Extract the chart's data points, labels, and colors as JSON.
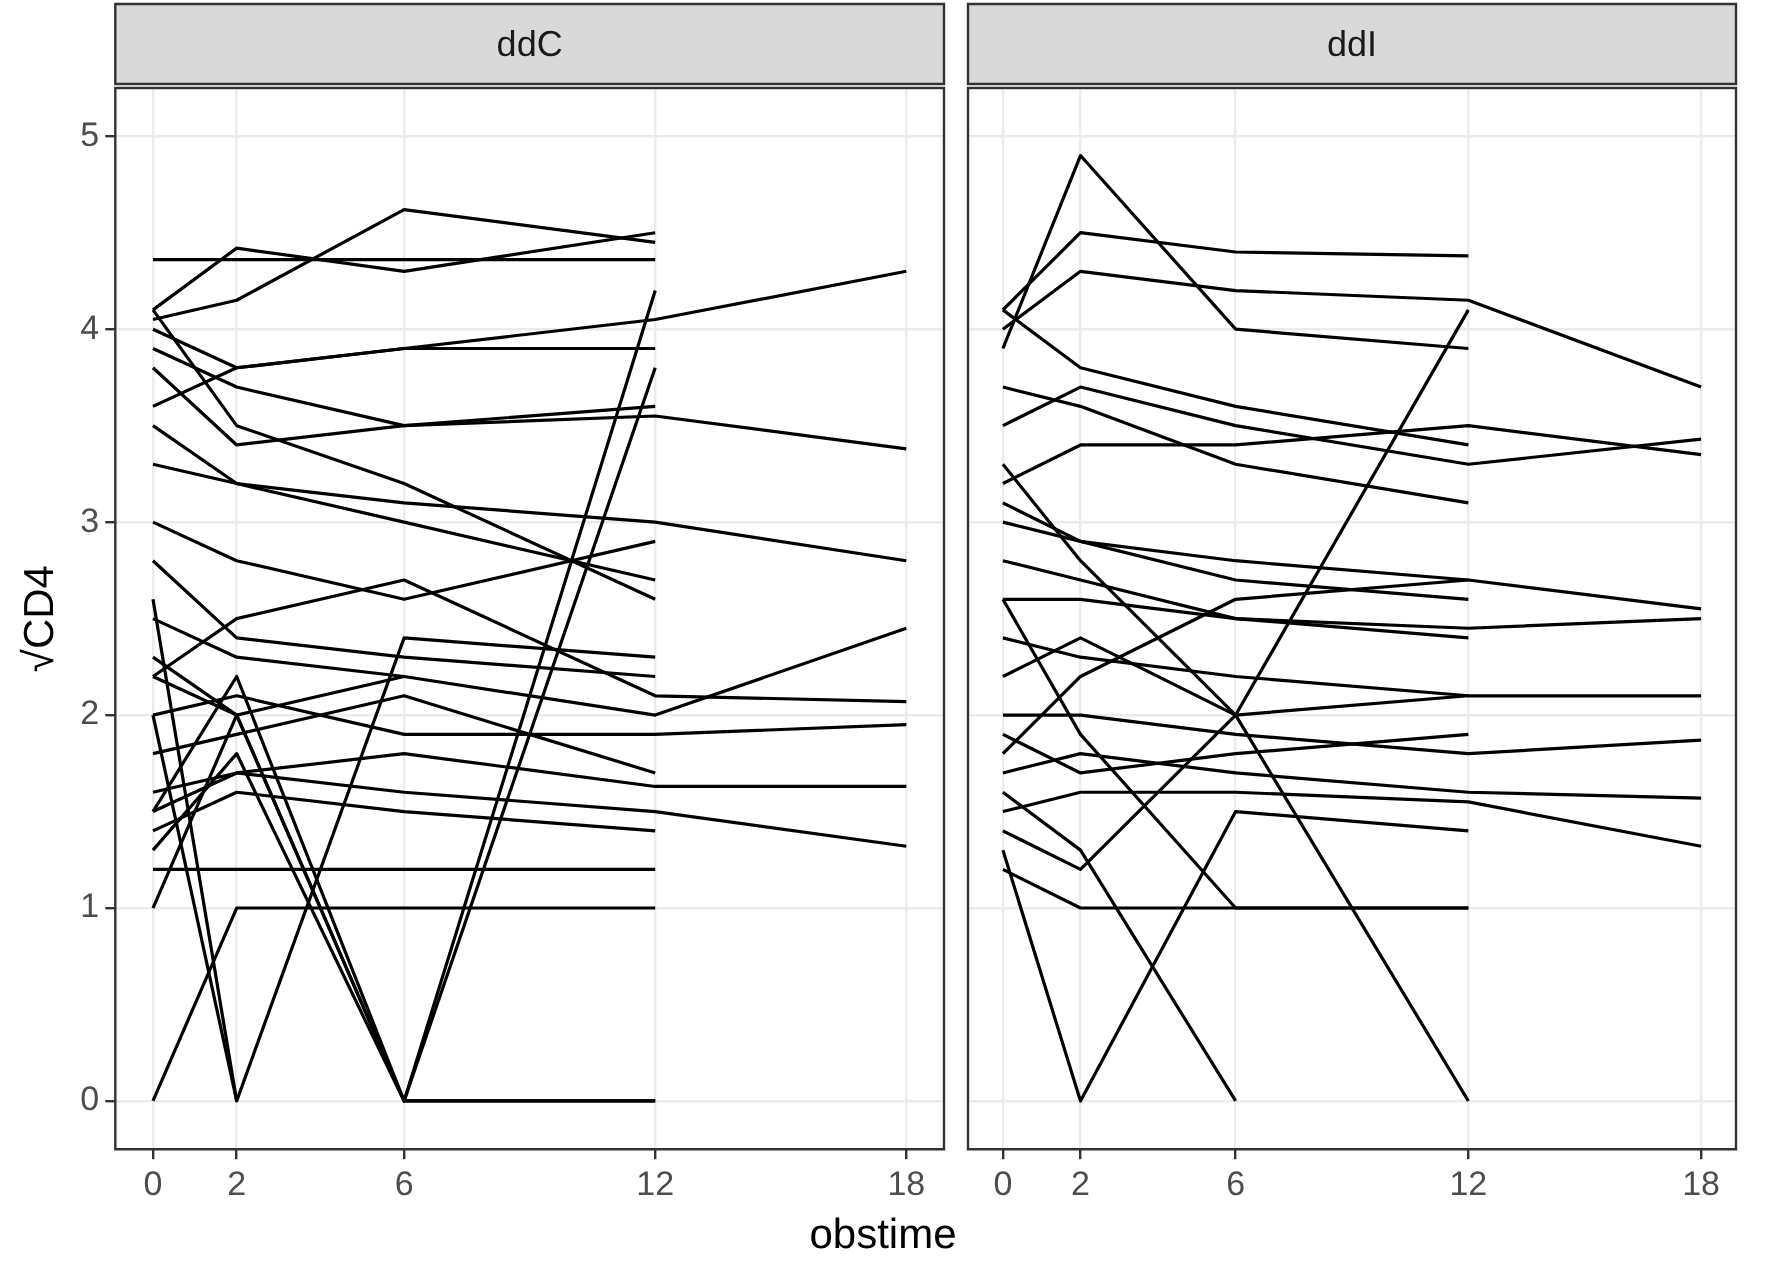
{
  "chart_data": [
    {
      "type": "line",
      "title": "ddC",
      "xlabel": "obstime",
      "ylabel": "√CD4",
      "xlim": [
        -0.9,
        18.9
      ],
      "ylim": [
        -0.25,
        5.25
      ],
      "xticks": [
        0,
        2,
        6,
        12,
        18
      ],
      "yticks": [
        0,
        1,
        2,
        3,
        4,
        5
      ],
      "grid": true,
      "legend": false,
      "series": [
        {
          "color": "#000000",
          "x": [
            0,
            2,
            6,
            12
          ],
          "values": [
            4.36,
            4.36,
            4.36,
            4.36
          ]
        },
        {
          "color": "#000000",
          "x": [
            0,
            2,
            6,
            12
          ],
          "values": [
            4.1,
            4.42,
            4.3,
            4.5
          ]
        },
        {
          "color": "#000000",
          "x": [
            0,
            2,
            6,
            12,
            18
          ],
          "values": [
            3.6,
            3.8,
            3.9,
            4.05,
            4.3
          ]
        },
        {
          "color": "#000000",
          "x": [
            0,
            2,
            6,
            12
          ],
          "values": [
            4.05,
            4.15,
            4.62,
            4.45
          ]
        },
        {
          "color": "#000000",
          "x": [
            0,
            2,
            6,
            12
          ],
          "values": [
            4.0,
            3.8,
            3.9,
            3.9
          ]
        },
        {
          "color": "#000000",
          "x": [
            0,
            2,
            6,
            12,
            18
          ],
          "values": [
            3.9,
            3.7,
            3.5,
            3.55,
            3.38
          ]
        },
        {
          "color": "#000000",
          "x": [
            0,
            2,
            6,
            12,
            18
          ],
          "values": [
            3.5,
            3.2,
            3.1,
            3.0,
            2.8
          ]
        },
        {
          "color": "#000000",
          "x": [
            0,
            2,
            6,
            12,
            18
          ],
          "values": [
            2.5,
            2.3,
            2.2,
            2.0,
            2.45
          ]
        },
        {
          "color": "#000000",
          "x": [
            0,
            2,
            6,
            12,
            18
          ],
          "values": [
            2.0,
            2.1,
            1.9,
            1.9,
            1.95
          ]
        },
        {
          "color": "#000000",
          "x": [
            0,
            2,
            6,
            12,
            18
          ],
          "values": [
            1.6,
            1.7,
            1.8,
            1.63,
            1.63
          ]
        },
        {
          "color": "#000000",
          "x": [
            0,
            2,
            6,
            12,
            18
          ],
          "values": [
            1.5,
            1.7,
            1.6,
            1.5,
            1.32
          ]
        },
        {
          "color": "#000000",
          "x": [
            0,
            2,
            6,
            12,
            18
          ],
          "values": [
            2.2,
            2.5,
            2.7,
            2.1,
            2.07
          ]
        },
        {
          "color": "#000000",
          "x": [
            0,
            2,
            6,
            12
          ],
          "values": [
            0,
            1.0,
            1.0,
            1.0
          ]
        },
        {
          "color": "#000000",
          "x": [
            0,
            2,
            6,
            12
          ],
          "values": [
            1.2,
            1.2,
            1.2,
            1.2
          ]
        },
        {
          "color": "#000000",
          "x": [
            0,
            2,
            6,
            12
          ],
          "values": [
            2.6,
            0,
            2.4,
            2.3
          ]
        },
        {
          "color": "#000000",
          "x": [
            0,
            2,
            6,
            12
          ],
          "values": [
            1.0,
            2.0,
            0,
            0
          ]
        },
        {
          "color": "#000000",
          "x": [
            0,
            2,
            6,
            12
          ],
          "values": [
            1.5,
            2.2,
            0,
            4.2
          ]
        },
        {
          "color": "#000000",
          "x": [
            0,
            2,
            6,
            12
          ],
          "values": [
            3.3,
            3.2,
            3.0,
            2.7
          ]
        },
        {
          "color": "#000000",
          "x": [
            0,
            2,
            6,
            12
          ],
          "values": [
            3.0,
            2.8,
            2.6,
            2.9
          ]
        },
        {
          "color": "#000000",
          "x": [
            0,
            2,
            6,
            12
          ],
          "values": [
            2.8,
            2.4,
            2.3,
            2.2
          ]
        },
        {
          "color": "#000000",
          "x": [
            0,
            2,
            6
          ],
          "values": [
            2.3,
            2.0,
            2.2
          ]
        },
        {
          "color": "#000000",
          "x": [
            0,
            2,
            6,
            12
          ],
          "values": [
            1.8,
            1.9,
            2.1,
            1.7
          ]
        },
        {
          "color": "#000000",
          "x": [
            0,
            2,
            6,
            12
          ],
          "values": [
            1.4,
            1.6,
            1.5,
            1.4
          ]
        },
        {
          "color": "#000000",
          "x": [
            0,
            2,
            6,
            12
          ],
          "values": [
            4.1,
            3.5,
            3.2,
            2.6
          ]
        },
        {
          "color": "#000000",
          "x": [
            0,
            2,
            6,
            12
          ],
          "values": [
            3.8,
            3.4,
            3.5,
            3.6
          ]
        },
        {
          "color": "#000000",
          "x": [
            0,
            2,
            6,
            12
          ],
          "values": [
            1.3,
            1.8,
            0,
            3.8
          ]
        },
        {
          "color": "#000000",
          "x": [
            0,
            2
          ],
          "values": [
            2.0,
            0
          ]
        },
        {
          "color": "#000000",
          "x": [
            0,
            2,
            6,
            12
          ],
          "values": [
            2.2,
            2.0,
            0,
            0
          ]
        }
      ]
    },
    {
      "type": "line",
      "title": "ddI",
      "xlim": [
        -0.9,
        18.9
      ],
      "ylim": [
        -0.25,
        5.25
      ],
      "xticks": [
        0,
        2,
        6,
        12,
        18
      ],
      "yticks": [
        0,
        1,
        2,
        3,
        4,
        5
      ],
      "grid": true,
      "legend": false,
      "tick_labels": "x",
      "series": [
        {
          "color": "#000000",
          "x": [
            0,
            2,
            6,
            12,
            18
          ],
          "values": [
            4.0,
            4.3,
            4.2,
            4.15,
            3.7
          ]
        },
        {
          "color": "#000000",
          "x": [
            0,
            2,
            6,
            12
          ],
          "values": [
            3.9,
            4.9,
            4.0,
            3.9
          ]
        },
        {
          "color": "#000000",
          "x": [
            0,
            2,
            6,
            12
          ],
          "values": [
            4.1,
            4.5,
            4.4,
            4.38
          ]
        },
        {
          "color": "#000000",
          "x": [
            0,
            2,
            6,
            12,
            18
          ],
          "values": [
            3.5,
            3.7,
            3.5,
            3.3,
            3.43
          ]
        },
        {
          "color": "#000000",
          "x": [
            0,
            2,
            6,
            12,
            18
          ],
          "values": [
            3.2,
            3.4,
            3.4,
            3.5,
            3.35
          ]
        },
        {
          "color": "#000000",
          "x": [
            0,
            2,
            6,
            12,
            18
          ],
          "values": [
            3.0,
            2.9,
            2.8,
            2.7,
            2.55
          ]
        },
        {
          "color": "#000000",
          "x": [
            0,
            2,
            6,
            12,
            18
          ],
          "values": [
            2.6,
            2.6,
            2.5,
            2.45,
            2.5
          ]
        },
        {
          "color": "#000000",
          "x": [
            0,
            2,
            6,
            12,
            18
          ],
          "values": [
            2.4,
            2.3,
            2.2,
            2.1,
            2.1
          ]
        },
        {
          "color": "#000000",
          "x": [
            0,
            2,
            6,
            12,
            18
          ],
          "values": [
            2.0,
            2.0,
            1.9,
            1.8,
            1.87
          ]
        },
        {
          "color": "#000000",
          "x": [
            0,
            2,
            6,
            12,
            18
          ],
          "values": [
            1.7,
            1.8,
            1.7,
            1.6,
            1.57
          ]
        },
        {
          "color": "#000000",
          "x": [
            0,
            2,
            6,
            12,
            18
          ],
          "values": [
            1.5,
            1.6,
            1.6,
            1.55,
            1.32
          ]
        },
        {
          "color": "#000000",
          "x": [
            0,
            2,
            6,
            12
          ],
          "values": [
            1.3,
            0,
            1.5,
            1.4
          ]
        },
        {
          "color": "#000000",
          "x": [
            0,
            2,
            6
          ],
          "values": [
            1.6,
            1.3,
            0
          ]
        },
        {
          "color": "#000000",
          "x": [
            0,
            2,
            6,
            12
          ],
          "values": [
            2.6,
            1.9,
            1.0,
            1.0
          ]
        },
        {
          "color": "#000000",
          "x": [
            0,
            2,
            6,
            12
          ],
          "values": [
            3.3,
            2.8,
            2.0,
            0
          ]
        },
        {
          "color": "#000000",
          "x": [
            0,
            2,
            6,
            12
          ],
          "values": [
            1.2,
            1.0,
            1.0,
            1.0
          ]
        },
        {
          "color": "#000000",
          "x": [
            0,
            2,
            6,
            12
          ],
          "values": [
            1.4,
            1.2,
            2.0,
            4.1
          ]
        },
        {
          "color": "#000000",
          "x": [
            0,
            2,
            6,
            12
          ],
          "values": [
            3.7,
            3.6,
            3.3,
            3.1
          ]
        },
        {
          "color": "#000000",
          "x": [
            0,
            2,
            6,
            12
          ],
          "values": [
            2.8,
            2.7,
            2.5,
            2.4
          ]
        },
        {
          "color": "#000000",
          "x": [
            0,
            2,
            6,
            12
          ],
          "values": [
            2.2,
            2.4,
            2.0,
            2.1
          ]
        },
        {
          "color": "#000000",
          "x": [
            0,
            2,
            6,
            12
          ],
          "values": [
            1.9,
            1.7,
            1.8,
            1.9
          ]
        },
        {
          "color": "#000000",
          "x": [
            0,
            2,
            6,
            12
          ],
          "values": [
            4.1,
            3.8,
            3.6,
            3.4
          ]
        },
        {
          "color": "#000000",
          "x": [
            0,
            2,
            6,
            12
          ],
          "values": [
            1.8,
            2.2,
            2.6,
            2.7
          ]
        },
        {
          "color": "#000000",
          "x": [
            0,
            2,
            6,
            12
          ],
          "values": [
            3.1,
            2.9,
            2.7,
            2.6
          ]
        }
      ]
    }
  ]
}
